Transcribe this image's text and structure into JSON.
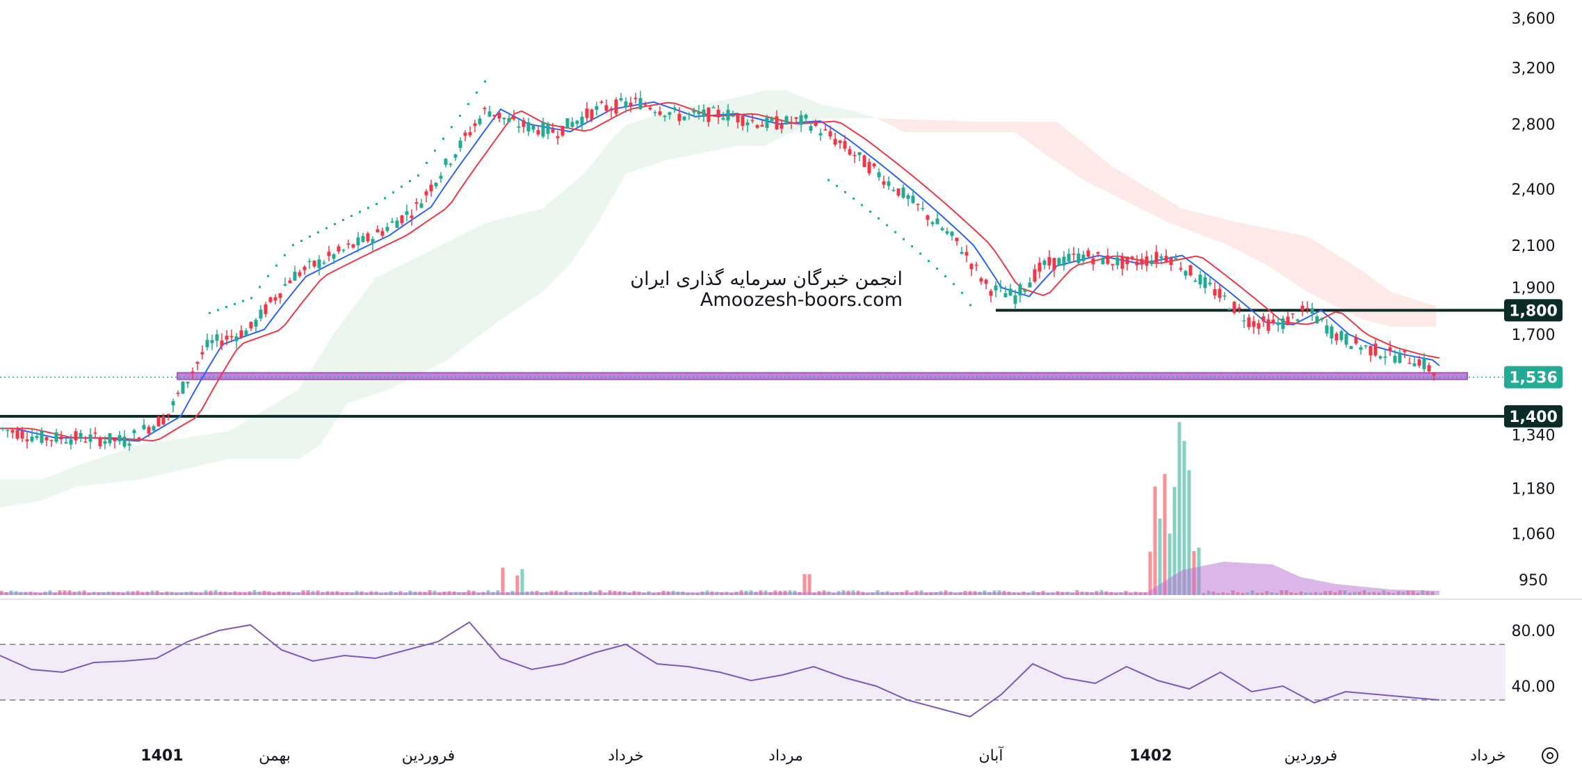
{
  "chart_data": {
    "type": "candlestick",
    "watermark": {
      "line1": "انجمن خبرگان سرمایه گذاری ایران",
      "line2": "Amoozesh-boors.com"
    },
    "price_axis": {
      "ticks": [
        {
          "value": 3600,
          "label": "3,600"
        },
        {
          "value": 3200,
          "label": "3,200"
        },
        {
          "value": 2800,
          "label": "2,800"
        },
        {
          "value": 2400,
          "label": "2,400"
        },
        {
          "value": 2100,
          "label": "2,100"
        },
        {
          "value": 1900,
          "label": "1,900"
        },
        {
          "value": 1700,
          "label": "1,700"
        },
        {
          "value": 1340,
          "label": "1,340"
        },
        {
          "value": 1180,
          "label": "1,180"
        },
        {
          "value": 1060,
          "label": "1,060"
        },
        {
          "value": 950,
          "label": "950"
        }
      ],
      "scale": "log"
    },
    "rsi_axis": {
      "ticks": [
        {
          "value": 80,
          "label": "80.00"
        },
        {
          "value": 40,
          "label": "40.00"
        }
      ],
      "upper_band": 70,
      "lower_band": 30
    },
    "time_axis": [
      {
        "label": "1401",
        "bold": true
      },
      {
        "label": "بهمن",
        "bold": false
      },
      {
        "label": "فروردین",
        "bold": false
      },
      {
        "label": "خرداد",
        "bold": false
      },
      {
        "label": "مرداد",
        "bold": false
      },
      {
        "label": "آبان",
        "bold": false
      },
      {
        "label": "1402",
        "bold": true
      },
      {
        "label": "فروردین",
        "bold": false
      },
      {
        "label": "خرداد",
        "bold": false
      }
    ],
    "levels": [
      {
        "value": 1800,
        "label": "1,800",
        "color": "#0b2b26"
      },
      {
        "value": 1400,
        "label": "1,400",
        "color": "#0b2b26"
      },
      {
        "value": 1536,
        "label": "1,536",
        "color": "#22ab94",
        "current": true
      }
    ],
    "support_zone": {
      "low": 1528,
      "high": 1552,
      "color": "#b96bd6"
    },
    "colors": {
      "up": "#22ab94",
      "down": "#f23645",
      "ma_fast": "#2962ff",
      "ma_slow": "#f23645",
      "cloud_up": "#e3f2e8",
      "cloud_down": "#fde3e1",
      "rsi_line": "#7e57c2",
      "rsi_band": "#ede7f6",
      "volume_ma": "#b56fd1"
    },
    "candles_approx": [
      {
        "t": 0,
        "o": 1380,
        "h": 1410,
        "c": 1390,
        "l": 1370
      },
      {
        "t": 1,
        "o": 1330,
        "h": 1370,
        "c": 1300,
        "l": 1290
      },
      {
        "t": 2,
        "o": 1310,
        "h": 1350,
        "c": 1340,
        "l": 1300
      },
      {
        "t": 3,
        "o": 1340,
        "h": 1360,
        "c": 1320,
        "l": 1300
      },
      {
        "t": 4,
        "o": 1320,
        "h": 1400,
        "c": 1390,
        "l": 1310
      },
      {
        "t": 5,
        "o": 1480,
        "h": 1700,
        "c": 1680,
        "l": 1460
      },
      {
        "t": 6,
        "o": 1750,
        "h": 1820,
        "c": 1800,
        "l": 1730
      },
      {
        "t": 7,
        "o": 2000,
        "h": 2100,
        "c": 2070,
        "l": 1960
      },
      {
        "t": 8,
        "o": 2100,
        "h": 2250,
        "c": 2200,
        "l": 2080
      },
      {
        "t": 9,
        "o": 2300,
        "h": 2600,
        "c": 2550,
        "l": 2280
      },
      {
        "t": 10,
        "o": 2900,
        "h": 3100,
        "c": 3050,
        "l": 2850
      },
      {
        "t": 11,
        "o": 2800,
        "h": 2950,
        "c": 2750,
        "l": 2700
      },
      {
        "t": 12,
        "o": 2750,
        "h": 2850,
        "c": 2800,
        "l": 2650
      },
      {
        "t": 13,
        "o": 2950,
        "h": 3100,
        "c": 3000,
        "l": 2800
      },
      {
        "t": 14,
        "o": 2900,
        "h": 3050,
        "c": 2950,
        "l": 2750
      },
      {
        "t": 15,
        "o": 2900,
        "h": 3000,
        "c": 2850,
        "l": 2800
      },
      {
        "t": 16,
        "o": 2850,
        "h": 2950,
        "c": 2700,
        "l": 2650
      },
      {
        "t": 17,
        "o": 2800,
        "h": 2950,
        "c": 2820,
        "l": 2700
      },
      {
        "t": 18,
        "o": 2700,
        "h": 2750,
        "c": 2600,
        "l": 2580
      },
      {
        "t": 19,
        "o": 2350,
        "h": 2400,
        "c": 2300,
        "l": 2280
      },
      {
        "t": 20,
        "o": 1900,
        "h": 1950,
        "c": 1800,
        "l": 1780
      },
      {
        "t": 21,
        "o": 2100,
        "h": 2150,
        "c": 2120,
        "l": 2000
      },
      {
        "t": 22,
        "o": 2050,
        "h": 2100,
        "c": 2000,
        "l": 1950
      },
      {
        "t": 23,
        "o": 2060,
        "h": 2120,
        "c": 1950,
        "l": 1900
      },
      {
        "t": 24,
        "o": 1880,
        "h": 1920,
        "c": 1850,
        "l": 1800
      },
      {
        "t": 25,
        "o": 1800,
        "h": 1850,
        "c": 1750,
        "l": 1700
      },
      {
        "t": 26,
        "o": 1820,
        "h": 1860,
        "c": 1850,
        "l": 1780
      },
      {
        "t": 27,
        "o": 1700,
        "h": 1750,
        "c": 1680,
        "l": 1650
      },
      {
        "t": 28,
        "o": 1640,
        "h": 1680,
        "c": 1620,
        "l": 1600
      },
      {
        "t": 29,
        "o": 1580,
        "h": 1620,
        "c": 1536,
        "l": 1520
      }
    ],
    "volume_approx": [
      5,
      4,
      3,
      3,
      12,
      5,
      4,
      4,
      10,
      6,
      3,
      4,
      5,
      3,
      3,
      4,
      3,
      4,
      4,
      3,
      3,
      8,
      5,
      4,
      4,
      3,
      3,
      2,
      100,
      60,
      40,
      30,
      20,
      12,
      10,
      8,
      6,
      5,
      5,
      4,
      3
    ],
    "rsi_approx": [
      62,
      52,
      50,
      57,
      58,
      60,
      72,
      80,
      84,
      66,
      58,
      62,
      60,
      66,
      72,
      86,
      60,
      52,
      56,
      64,
      70,
      56,
      54,
      50,
      44,
      48,
      54,
      46,
      40,
      30,
      24,
      18,
      34,
      56,
      46,
      42,
      54,
      44,
      38,
      50,
      36,
      40,
      28,
      36,
      34,
      32,
      30
    ]
  }
}
